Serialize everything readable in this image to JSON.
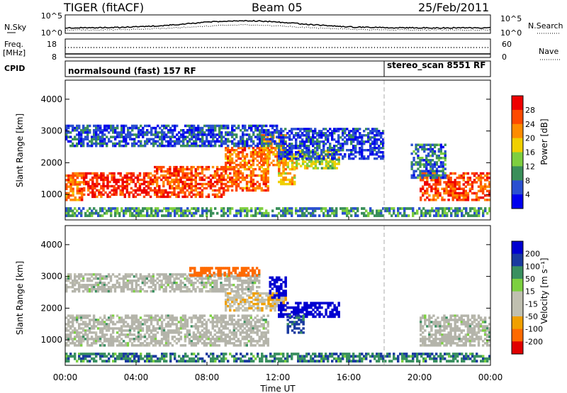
{
  "header": {
    "title": "TIGER (fitACF)",
    "beam": "Beam 05",
    "date": "25/Feb/2011"
  },
  "panels": {
    "nsky": {
      "label": "N.Sky",
      "yticks_left": [
        "10^5",
        "10^0"
      ],
      "yticks_right": [
        "10^5",
        "10^0"
      ],
      "right_label": "N.Search"
    },
    "freq": {
      "label_line1": "Freq.",
      "label_line2": "[MHz]",
      "yticks_left": [
        "18",
        "8"
      ],
      "yticks_right": [
        "60",
        "0"
      ],
      "right_label": "Nave"
    },
    "cpid": {
      "label": "CPID",
      "program_1": "normalsound (fast) 157 RF",
      "program_2": "stereo_scan 8551 RF"
    }
  },
  "colors": {
    "power_scale": [
      "#0000ee",
      "#2a4fd0",
      "#3a8f5a",
      "#7ecf3f",
      "#f0d000",
      "#ff8c00",
      "#ff4a00",
      "#ee0000"
    ],
    "velocity_scale": [
      "#e00000",
      "#ff6a00",
      "#f0a000",
      "#c0c0b0",
      "#c0c0b0",
      "#7cd040",
      "#3a9060",
      "#1a3aa0",
      "#0000d0"
    ],
    "ground_scatter": "#b4b4aa"
  },
  "chart_data": [
    {
      "type": "heatmap",
      "name": "power-panel",
      "ylabel": "Slant Range [km]",
      "yticks": [
        1000,
        2000,
        3000,
        4000
      ],
      "ylim": [
        200,
        4600
      ],
      "xlim": [
        0,
        24
      ],
      "xticks": [
        "00:00",
        "04:00",
        "08:00",
        "12:00",
        "16:00",
        "20:00",
        "00:00"
      ],
      "colorbar": {
        "label": "Power [dB]",
        "ticks": [
          "28",
          "24",
          "20",
          "16",
          "12",
          "8",
          "4"
        ],
        "range": [
          0,
          32
        ]
      },
      "bands": [
        {
          "t0": 0.0,
          "t1": 1.0,
          "r0": 800,
          "r1": 1700,
          "value": 24
        },
        {
          "t0": 1.0,
          "t1": 5.0,
          "r0": 900,
          "r1": 1700,
          "value": 28
        },
        {
          "t0": 5.0,
          "t1": 9.0,
          "r0": 900,
          "r1": 1900,
          "value": 26
        },
        {
          "t0": 9.0,
          "t1": 11.5,
          "r0": 1100,
          "r1": 2500,
          "value": 24
        },
        {
          "t0": 11.0,
          "t1": 12.5,
          "r0": 1900,
          "r1": 2900,
          "value": 22
        },
        {
          "t0": 12.0,
          "t1": 13.0,
          "r0": 1300,
          "r1": 2300,
          "value": 20
        },
        {
          "t0": 13.0,
          "t1": 15.5,
          "r0": 1800,
          "r1": 2400,
          "value": 16
        },
        {
          "t0": 0.0,
          "t1": 12.0,
          "r0": 2500,
          "r1": 3200,
          "value": 6
        },
        {
          "t0": 12.0,
          "t1": 18.0,
          "r0": 2100,
          "r1": 3100,
          "value": 5
        },
        {
          "t0": 20.0,
          "t1": 24.0,
          "r0": 800,
          "r1": 1700,
          "value": 26
        },
        {
          "t0": 19.5,
          "t1": 21.5,
          "r0": 1500,
          "r1": 2600,
          "value": 8
        },
        {
          "t0": 0.0,
          "t1": 24.0,
          "r0": 300,
          "r1": 600,
          "value": 10
        }
      ]
    },
    {
      "type": "heatmap",
      "name": "velocity-panel",
      "ylabel": "Slant Range [km]",
      "yticks": [
        1000,
        2000,
        3000,
        4000
      ],
      "ylim": [
        200,
        4600
      ],
      "xlim": [
        0,
        24
      ],
      "xlabel": "Time UT",
      "xticks": [
        "00:00",
        "04:00",
        "08:00",
        "12:00",
        "16:00",
        "20:00",
        "00:00"
      ],
      "colorbar": {
        "label": "Velocity [m s⁻¹]",
        "ticks": [
          "200",
          "100",
          "50",
          "15",
          "-15",
          "-50",
          "-100",
          "-200"
        ]
      },
      "bands": [
        {
          "t0": 0.0,
          "t1": 11.5,
          "r0": 800,
          "r1": 1800,
          "value": 0
        },
        {
          "t0": 9.0,
          "t1": 12.5,
          "r0": 1900,
          "r1": 2500,
          "value": -40
        },
        {
          "t0": 11.5,
          "t1": 12.5,
          "r0": 2300,
          "r1": 3000,
          "value": 180
        },
        {
          "t0": 12.0,
          "t1": 15.5,
          "r0": 1700,
          "r1": 2200,
          "value": 150
        },
        {
          "t0": 12.5,
          "t1": 13.5,
          "r0": 1200,
          "r1": 1800,
          "value": 60
        },
        {
          "t0": 0.0,
          "t1": 11.0,
          "r0": 2500,
          "r1": 3100,
          "value": 0
        },
        {
          "t0": 7.0,
          "t1": 11.0,
          "r0": 3000,
          "r1": 3300,
          "value": -150
        },
        {
          "t0": 20.0,
          "t1": 24.0,
          "r0": 800,
          "r1": 1800,
          "value": 0
        },
        {
          "t0": 0.0,
          "t1": 24.0,
          "r0": 300,
          "r1": 600,
          "value": 40
        }
      ]
    }
  ]
}
